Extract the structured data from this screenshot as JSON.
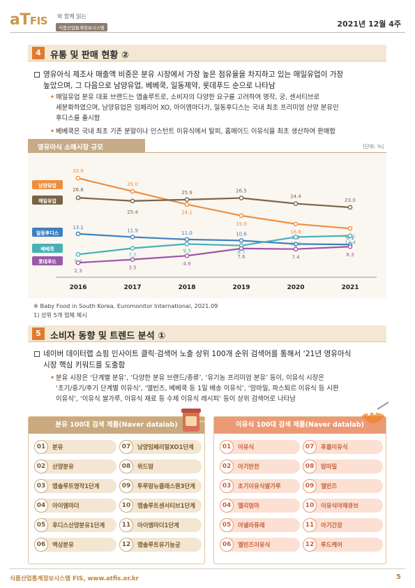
{
  "header": {
    "logo_main": "aT",
    "logo_fis": "FIS",
    "logo_tagline": "와 함께 읽는",
    "logo_badge": "식품산업통계정보시스템",
    "date": "2021년 12월 4주"
  },
  "section4": {
    "num": "4",
    "title": "유통 및 판매 현황 ②",
    "bullet_line1": "영유아식 제조사 매출액 비중은 분유 시장에서 가장 높은 점유율을 차지하고 있는 매일유업이 가장",
    "bullet_line2": "높았으며, 그 다음으로 남양유업, 베베쿡, 일동제약, 롯데푸드 순으로 나타남",
    "sub1_line1": "매일유업 분유 대표 브랜드는 앱솔루트로, 소비자의 다양한 요구를 고려하여 명작, 궁, 센서티브로",
    "sub1_line2": "세분화하였으며, 남양유업은 임페리어 XO, 아이엠마더가, 일동후디스는 국내 최초 프리미엄 산양 분유인",
    "sub1_line3": "후디스를 출시함",
    "sub2_line1": "베베쿡은 국내 최초 기존 분말이나 인스턴트 이유식에서 탈피, 홈메이드 이유식을 최초 생산하여 판매함"
  },
  "chart_data": {
    "type": "line",
    "title": "영유아식 소매시장 규모",
    "unit": "[단위: %]",
    "x": [
      "2016",
      "2017",
      "2018",
      "2019",
      "2020",
      "2021"
    ],
    "series": [
      {
        "name": "남양유업",
        "color": "#ef8e3f",
        "values": [
          33.9,
          29.0,
          24.1,
          19.9,
          16.8,
          15.1
        ]
      },
      {
        "name": "매일유업",
        "color": "#7a6346",
        "values": [
          26.6,
          25.4,
          25.9,
          26.5,
          24.4,
          23.0
        ]
      },
      {
        "name": "일동후디스",
        "color": "#3e7fbf",
        "values": [
          13.1,
          11.9,
          11.0,
          10.6,
          9.3,
          9.1
        ]
      },
      {
        "name": "베베쿡",
        "color": "#49b0b6",
        "values": [
          5.4,
          7.7,
          9.3,
          8.7,
          11.9,
          12.4
        ]
      },
      {
        "name": "롯데푸드",
        "color": "#9a58a8",
        "values": [
          2.3,
          3.5,
          4.9,
          7.6,
          7.4,
          8.3
        ]
      }
    ],
    "legend_labels": [
      "남양유업",
      "매일유업",
      "일동후디스",
      "베베쿡",
      "롯데푸드"
    ]
  },
  "notes": {
    "source": "※ Baby Food in South Korea, Euromonitor International, 2021.09",
    "footnote": "1) 상위 5개 업체 제시"
  },
  "section5": {
    "num": "5",
    "title": "소비자 동향 및 트렌드 분석 ①",
    "bullet_line1": "네이버 데이터랩 쇼핑 인사이트 클릭·검색어 노출 상위 100개 순위 검색어를 통해서 ‘21년 영유아식",
    "bullet_line2": "시장 핵심 키워드를 도출함",
    "sub1_line1": "분유 시장은 ‘단계별 분유’, ‘다양한 분유 브랜드/종류’, ‘유기농 프리미엄 분유’ 등이, 이유식 시장은",
    "sub1_line2": "‘초기/중기/후기 단계별 이유식’, ‘엘빈즈, 베베쿡 등 1일 배송 이유식’, ‘맘마밀, 파스퇴르 이유식 등 시판",
    "sub1_line3": "이유식’, ‘이유식 쌀가루, 이유식 재료 등 수제 이유식 레시피’ 등이 상위 검색어로 나타남"
  },
  "left_panel": {
    "title": "분유 100대 검색 제품(Naver datalab)",
    "color": "#c9a97d",
    "items": [
      {
        "num": "01",
        "label": "분유"
      },
      {
        "num": "02",
        "label": "산양분유"
      },
      {
        "num": "03",
        "label": "앱솔루트명작1단계"
      },
      {
        "num": "04",
        "label": "아이엠마더"
      },
      {
        "num": "05",
        "label": "후디스산양분유1단계"
      },
      {
        "num": "06",
        "label": "액상분유"
      },
      {
        "num": "07",
        "label": "남양임페리얼XO1단계"
      },
      {
        "num": "08",
        "label": "위드맘"
      },
      {
        "num": "09",
        "label": "투루맘뉴클래스퀀3단계"
      },
      {
        "num": "10",
        "label": "앱솔루트센서티브1단계"
      },
      {
        "num": "11",
        "label": "아이엠마더1단계"
      },
      {
        "num": "12",
        "label": "앱솔루트유기농궁"
      }
    ]
  },
  "right_panel": {
    "title": "이유식 100대 검색 제품(Naver datalab)",
    "color": "#ec9a74",
    "items": [
      {
        "num": "01",
        "label": "이유식"
      },
      {
        "num": "02",
        "label": "아기반찬"
      },
      {
        "num": "03",
        "label": "초기이유식쌀가루"
      },
      {
        "num": "04",
        "label": "엘리멈마"
      },
      {
        "num": "05",
        "label": "아넬라퓨레"
      },
      {
        "num": "06",
        "label": "엘빈즈이유식"
      },
      {
        "num": "07",
        "label": "후클이유식"
      },
      {
        "num": "08",
        "label": "맘마밀"
      },
      {
        "num": "09",
        "label": "엘빈즈"
      },
      {
        "num": "10",
        "label": "이유식야채큐브"
      },
      {
        "num": "11",
        "label": "아기간장"
      },
      {
        "num": "12",
        "label": "루드케어"
      }
    ]
  },
  "footer": {
    "text": "식품산업통계정보시스템 FIS, www.atfis.or.kr",
    "page": "5"
  }
}
